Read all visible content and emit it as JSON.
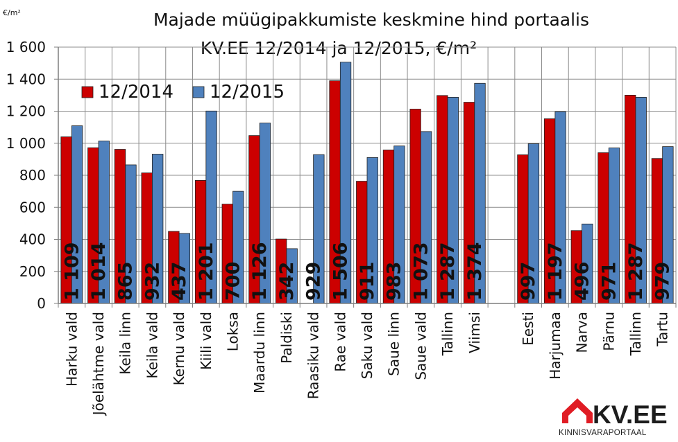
{
  "chart_data": {
    "type": "bar",
    "title_line1": "Majade müügipakkumiste keskmine hind portaalis",
    "title_line2": "KV.EE 12/2014 ja 12/2015, €/m²",
    "unit_label": "€/m²",
    "ylim": [
      0,
      1600
    ],
    "yticks": [
      0,
      200,
      400,
      600,
      800,
      1000,
      1200,
      1400,
      1600
    ],
    "ytick_labels": [
      "0",
      "200",
      "400",
      "600",
      "800",
      "1 000",
      "1 200",
      "1 400",
      "1 600"
    ],
    "grid": true,
    "legend_position": "top-left",
    "categories": [
      "Harku vald",
      "Jõelähtme vald",
      "Keila linn",
      "Keila vald",
      "Kernu vald",
      "Kiili vald",
      "Loksa",
      "Maardu linn",
      "Paldiski",
      "Raasiku vald",
      "Rae vald",
      "Saku vald",
      "Saue linn",
      "Saue vald",
      "Tallinn",
      "Viimsi",
      "",
      "Eesti",
      "Harjumaa",
      "Narva",
      "Pärnu",
      "Tallinn",
      "Tartu"
    ],
    "series": [
      {
        "name": "12/2014",
        "color": "#cc0000",
        "values": [
          1040,
          972,
          962,
          815,
          450,
          768,
          620,
          1048,
          402,
          null,
          1390,
          763,
          958,
          1213,
          1298,
          1256,
          null,
          928,
          1153,
          455,
          941,
          1300,
          905
        ]
      },
      {
        "name": "12/2015",
        "color": "#4f81bd",
        "values": [
          1109,
          1014,
          865,
          932,
          437,
          1201,
          700,
          1126,
          342,
          929,
          1506,
          911,
          983,
          1073,
          1287,
          1374,
          null,
          997,
          1197,
          496,
          971,
          1287,
          979
        ]
      }
    ],
    "data_labels": [
      "1 109",
      "1 014",
      "865",
      "932",
      "437",
      "1 201",
      "700",
      "1 126",
      "342",
      "929",
      "1 506",
      "911",
      "983",
      "1 073",
      "1 287",
      "1 374",
      "",
      "997",
      "1 197",
      "496",
      "971",
      "1 287",
      "979"
    ]
  },
  "logo": {
    "name": "KV.EE",
    "subtitle": "KINNISVARAPORTAAL",
    "accent_color": "#e01c24"
  }
}
